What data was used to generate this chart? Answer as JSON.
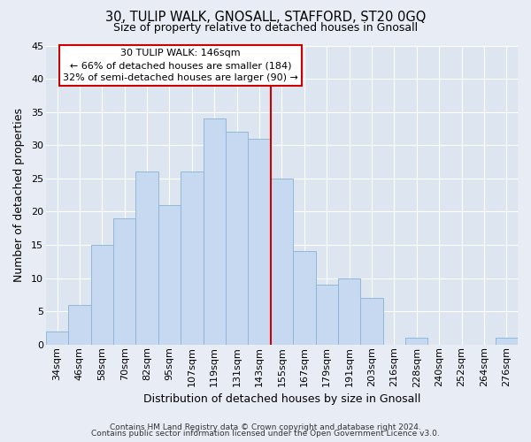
{
  "title": "30, TULIP WALK, GNOSALL, STAFFORD, ST20 0GQ",
  "subtitle": "Size of property relative to detached houses in Gnosall",
  "xlabel": "Distribution of detached houses by size in Gnosall",
  "ylabel": "Number of detached properties",
  "bar_labels": [
    "34sqm",
    "46sqm",
    "58sqm",
    "70sqm",
    "82sqm",
    "95sqm",
    "107sqm",
    "119sqm",
    "131sqm",
    "143sqm",
    "155sqm",
    "167sqm",
    "179sqm",
    "191sqm",
    "203sqm",
    "216sqm",
    "228sqm",
    "240sqm",
    "252sqm",
    "264sqm",
    "276sqm"
  ],
  "bar_values": [
    2,
    6,
    15,
    19,
    26,
    21,
    26,
    34,
    32,
    31,
    25,
    14,
    9,
    10,
    7,
    0,
    1,
    0,
    0,
    0,
    1
  ],
  "bar_color": "#c6d9f0",
  "bar_edge_color": "#8fb8d8",
  "ylim": [
    0,
    45
  ],
  "yticks": [
    0,
    5,
    10,
    15,
    20,
    25,
    30,
    35,
    40,
    45
  ],
  "vline_position": 9.5,
  "vline_color": "#cc0000",
  "annotation_title": "30 TULIP WALK: 146sqm",
  "annotation_line1": "← 66% of detached houses are smaller (184)",
  "annotation_line2": "32% of semi-detached houses are larger (90) →",
  "annotation_box_facecolor": "#ffffff",
  "annotation_box_edgecolor": "#cc0000",
  "footer_line1": "Contains HM Land Registry data © Crown copyright and database right 2024.",
  "footer_line2": "Contains public sector information licensed under the Open Government Licence v3.0.",
  "fig_facecolor": "#e8edf5",
  "plot_facecolor": "#dde5f0",
  "grid_color": "#ffffff",
  "title_fontsize": 10.5,
  "subtitle_fontsize": 9,
  "tick_fontsize": 8,
  "axis_label_fontsize": 9,
  "annotation_fontsize": 8,
  "footer_fontsize": 6.5
}
